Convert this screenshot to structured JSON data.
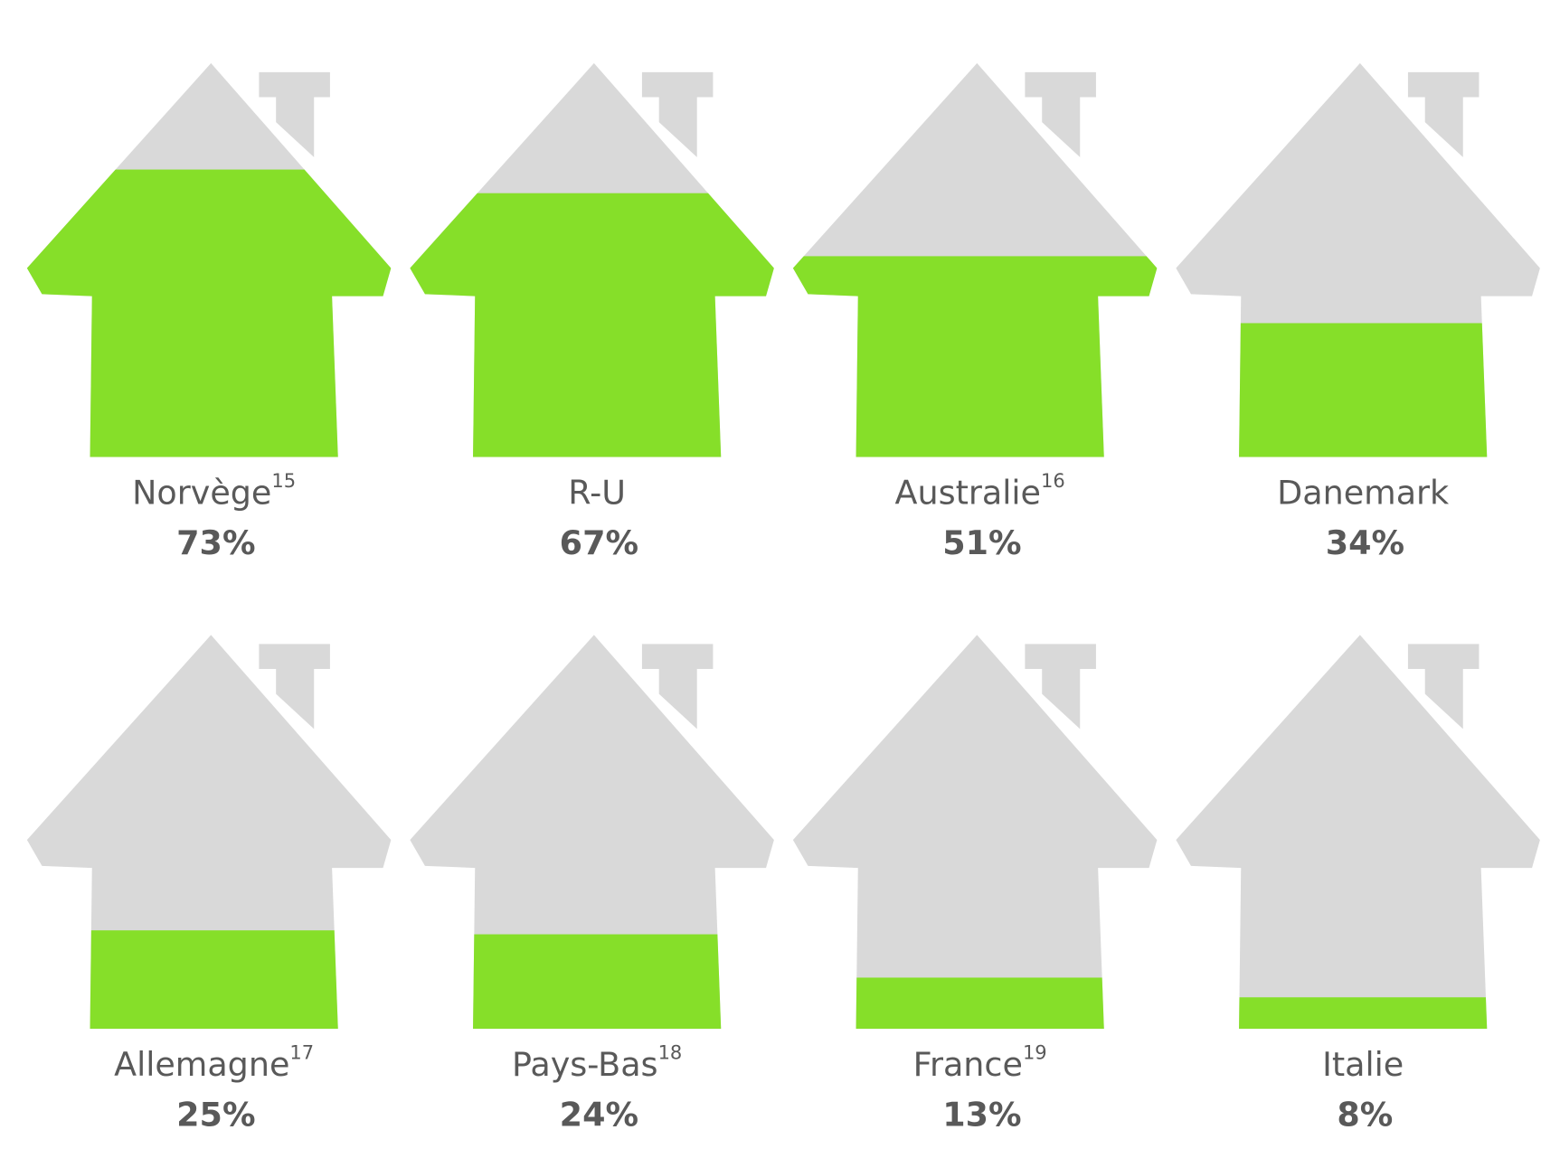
{
  "chart_data": {
    "type": "pictogram",
    "categories": [
      "Norvège",
      "R-U",
      "Australie",
      "Danemark",
      "Allemagne",
      "Pays-Bas",
      "France",
      "Italie"
    ],
    "footnotes": [
      "15",
      null,
      "16",
      null,
      "17",
      "18",
      "19",
      null
    ],
    "values": [
      73,
      67,
      51,
      34,
      25,
      24,
      13,
      8
    ],
    "value_labels": [
      "73%",
      "67%",
      "51%",
      "34%",
      "25%",
      "24%",
      "13%",
      "8%"
    ],
    "ylim": [
      0,
      100
    ],
    "color": "#86df29",
    "empty_color": "#d9d9d9"
  }
}
